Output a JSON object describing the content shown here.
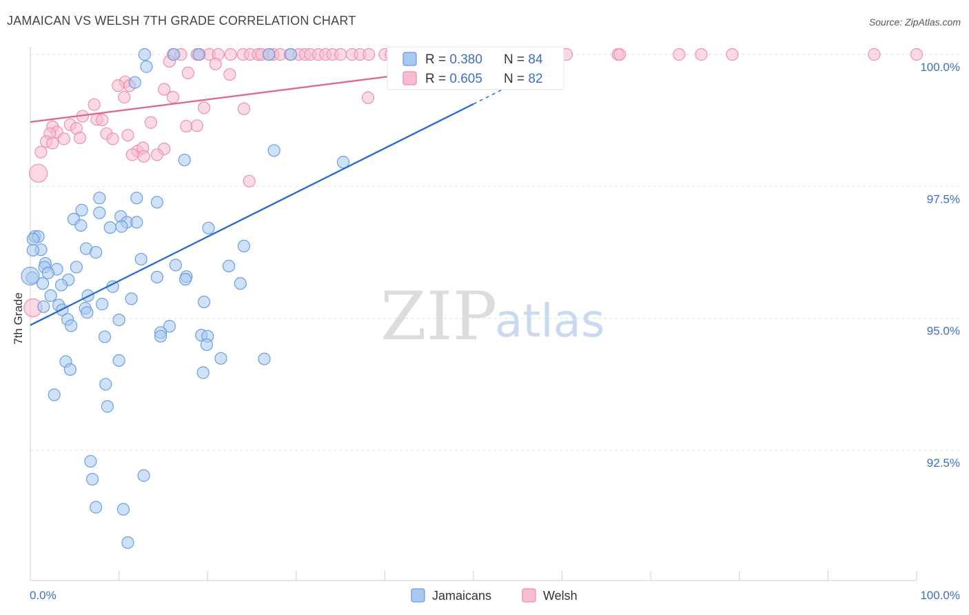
{
  "title": "JAMAICAN VS WELSH 7TH GRADE CORRELATION CHART",
  "source": "Source: ZipAtlas.com",
  "colors": {
    "blue_fill": "#a8c8f0",
    "blue_stroke": "#6a9ee0",
    "blue_line": "#2a6fd0",
    "pink_fill": "#f7bccd",
    "pink_stroke": "#ec90ad",
    "pink_line": "#e06890",
    "text_blue": "#3c6fc2"
  },
  "legend": {
    "r_label": "R = ",
    "n_label": "N = ",
    "series": [
      {
        "r": "0.380",
        "n": "84"
      },
      {
        "r": "0.605",
        "n": "82"
      }
    ]
  },
  "watermark": {
    "zip": "ZIP",
    "atlas": "atlas"
  },
  "chart_data": {
    "type": "scatter",
    "title": "JAMAICAN VS WELSH 7TH GRADE CORRELATION CHART",
    "xlabel": "",
    "ylabel": "7th Grade",
    "xlim": [
      0,
      100
    ],
    "ylim": [
      90.2,
      100.25
    ],
    "x_tick_labels": [
      "0.0%",
      "100.0%"
    ],
    "y_ticks": [
      92.5,
      95.0,
      97.5,
      100.0
    ],
    "y_tick_labels": [
      "92.5%",
      "95.0%",
      "97.5%",
      "100.0%"
    ],
    "grid": true,
    "legend_position": "bottom",
    "series": [
      {
        "name": "Jamaicans",
        "color": "#a8c8f0",
        "r": 0.38,
        "n": 84,
        "trend": {
          "x0": 0,
          "y0": 94.87,
          "x1": 60,
          "y1": 99.9,
          "dash_from": 50
        },
        "points": [
          [
            12.9,
            100
          ],
          [
            16.2,
            100
          ],
          [
            19.0,
            100
          ],
          [
            26.9,
            100
          ],
          [
            29.4,
            100
          ],
          [
            13.1,
            99.77
          ],
          [
            11.8,
            99.47
          ],
          [
            27.5,
            98.18
          ],
          [
            17.4,
            98.0
          ],
          [
            35.3,
            97.96
          ],
          [
            7.8,
            97.28
          ],
          [
            12.0,
            97.28
          ],
          [
            14.3,
            97.2
          ],
          [
            5.8,
            97.05
          ],
          [
            7.8,
            97.0
          ],
          [
            10.2,
            96.93
          ],
          [
            4.9,
            96.88
          ],
          [
            10.9,
            96.82
          ],
          [
            12.0,
            96.82
          ],
          [
            5.7,
            96.76
          ],
          [
            9.0,
            96.72
          ],
          [
            10.3,
            96.74
          ],
          [
            20.1,
            96.71
          ],
          [
            0.5,
            96.55
          ],
          [
            0.9,
            96.55
          ],
          [
            1.2,
            96.3
          ],
          [
            6.3,
            96.32
          ],
          [
            7.4,
            96.25
          ],
          [
            24.1,
            96.37
          ],
          [
            0.3,
            96.29
          ],
          [
            12.5,
            96.12
          ],
          [
            1.7,
            96.04
          ],
          [
            1.6,
            95.97
          ],
          [
            5.2,
            95.97
          ],
          [
            16.4,
            96.01
          ],
          [
            22.4,
            95.99
          ],
          [
            3.0,
            95.93
          ],
          [
            2.0,
            95.86
          ],
          [
            14.3,
            95.78
          ],
          [
            17.6,
            95.79
          ],
          [
            17.5,
            95.74
          ],
          [
            4.3,
            95.73
          ],
          [
            0.2,
            95.77
          ],
          [
            1.4,
            95.66
          ],
          [
            3.5,
            95.63
          ],
          [
            9.3,
            95.6
          ],
          [
            23.7,
            95.66
          ],
          [
            6.5,
            95.43
          ],
          [
            2.3,
            95.43
          ],
          [
            11.4,
            95.37
          ],
          [
            19.6,
            95.31
          ],
          [
            3.2,
            95.25
          ],
          [
            8.1,
            95.27
          ],
          [
            1.5,
            95.22
          ],
          [
            3.6,
            95.16
          ],
          [
            6.2,
            95.19
          ],
          [
            6.4,
            95.11
          ],
          [
            4.2,
            94.98
          ],
          [
            10.0,
            94.97
          ],
          [
            4.6,
            94.86
          ],
          [
            15.7,
            94.85
          ],
          [
            14.7,
            94.73
          ],
          [
            14.7,
            94.66
          ],
          [
            8.4,
            94.65
          ],
          [
            19.3,
            94.68
          ],
          [
            20.0,
            94.66
          ],
          [
            19.9,
            94.5
          ],
          [
            10.0,
            94.2
          ],
          [
            4.0,
            94.18
          ],
          [
            21.5,
            94.24
          ],
          [
            26.4,
            94.23
          ],
          [
            4.5,
            94.03
          ],
          [
            19.5,
            93.97
          ],
          [
            8.5,
            93.75
          ],
          [
            2.7,
            93.55
          ],
          [
            8.7,
            93.33
          ],
          [
            6.8,
            92.29
          ],
          [
            7.0,
            91.95
          ],
          [
            12.8,
            92.02
          ],
          [
            7.4,
            91.42
          ],
          [
            10.5,
            91.38
          ],
          [
            11.0,
            90.75
          ],
          [
            0.0,
            95.8
          ],
          [
            0.3,
            96.5
          ]
        ]
      },
      {
        "name": "Welsh",
        "color": "#f7bccd",
        "r": 0.605,
        "n": 82,
        "trend": {
          "x0": 0,
          "y0": 98.72,
          "x1": 60,
          "y1": 100.0
        },
        "points": [
          [
            16.1,
            100
          ],
          [
            17.0,
            100
          ],
          [
            18.8,
            100
          ],
          [
            19.1,
            100
          ],
          [
            20.2,
            100
          ],
          [
            21.2,
            100
          ],
          [
            22.6,
            100
          ],
          [
            24.0,
            100
          ],
          [
            24.8,
            100
          ],
          [
            25.7,
            100
          ],
          [
            26.1,
            100
          ],
          [
            27.0,
            100
          ],
          [
            27.4,
            100
          ],
          [
            28.2,
            100
          ],
          [
            29.3,
            100
          ],
          [
            30.3,
            100
          ],
          [
            31.0,
            100
          ],
          [
            31.6,
            100
          ],
          [
            32.5,
            100
          ],
          [
            33.3,
            100
          ],
          [
            34.1,
            100
          ],
          [
            35.0,
            100
          ],
          [
            36.3,
            100
          ],
          [
            37.2,
            100
          ],
          [
            38.2,
            100
          ],
          [
            40.0,
            100
          ],
          [
            40.7,
            100
          ],
          [
            41.7,
            100
          ],
          [
            44.7,
            100
          ],
          [
            46.3,
            100
          ],
          [
            47.6,
            100
          ],
          [
            49.2,
            100
          ],
          [
            60.5,
            100
          ],
          [
            66.3,
            100
          ],
          [
            66.5,
            100
          ],
          [
            73.2,
            100
          ],
          [
            75.7,
            100
          ],
          [
            79.2,
            100
          ],
          [
            95.2,
            100
          ],
          [
            100.0,
            100
          ],
          [
            15.7,
            99.87
          ],
          [
            20.9,
            99.82
          ],
          [
            22.5,
            99.62
          ],
          [
            17.8,
            99.65
          ],
          [
            10.7,
            99.48
          ],
          [
            11.2,
            99.41
          ],
          [
            9.9,
            99.41
          ],
          [
            15.1,
            99.34
          ],
          [
            16.1,
            99.19
          ],
          [
            10.6,
            99.19
          ],
          [
            19.6,
            98.99
          ],
          [
            24.1,
            98.97
          ],
          [
            38.1,
            99.18
          ],
          [
            7.2,
            99.05
          ],
          [
            7.5,
            98.77
          ],
          [
            5.9,
            98.83
          ],
          [
            8.1,
            98.76
          ],
          [
            13.6,
            98.71
          ],
          [
            4.5,
            98.67
          ],
          [
            17.6,
            98.64
          ],
          [
            18.8,
            98.65
          ],
          [
            2.5,
            98.63
          ],
          [
            5.2,
            98.6
          ],
          [
            3.0,
            98.53
          ],
          [
            2.2,
            98.5
          ],
          [
            8.6,
            98.5
          ],
          [
            11.0,
            98.47
          ],
          [
            3.8,
            98.4
          ],
          [
            5.6,
            98.42
          ],
          [
            1.8,
            98.35
          ],
          [
            2.5,
            98.32
          ],
          [
            9.3,
            98.4
          ],
          [
            15.1,
            98.21
          ],
          [
            12.1,
            98.17
          ],
          [
            11.5,
            98.1
          ],
          [
            12.7,
            98.23
          ],
          [
            12.8,
            98.07
          ],
          [
            14.3,
            98.1
          ],
          [
            1.2,
            98.15
          ],
          [
            0.9,
            97.75
          ],
          [
            0.3,
            95.2
          ],
          [
            24.7,
            97.6
          ]
        ]
      }
    ]
  }
}
